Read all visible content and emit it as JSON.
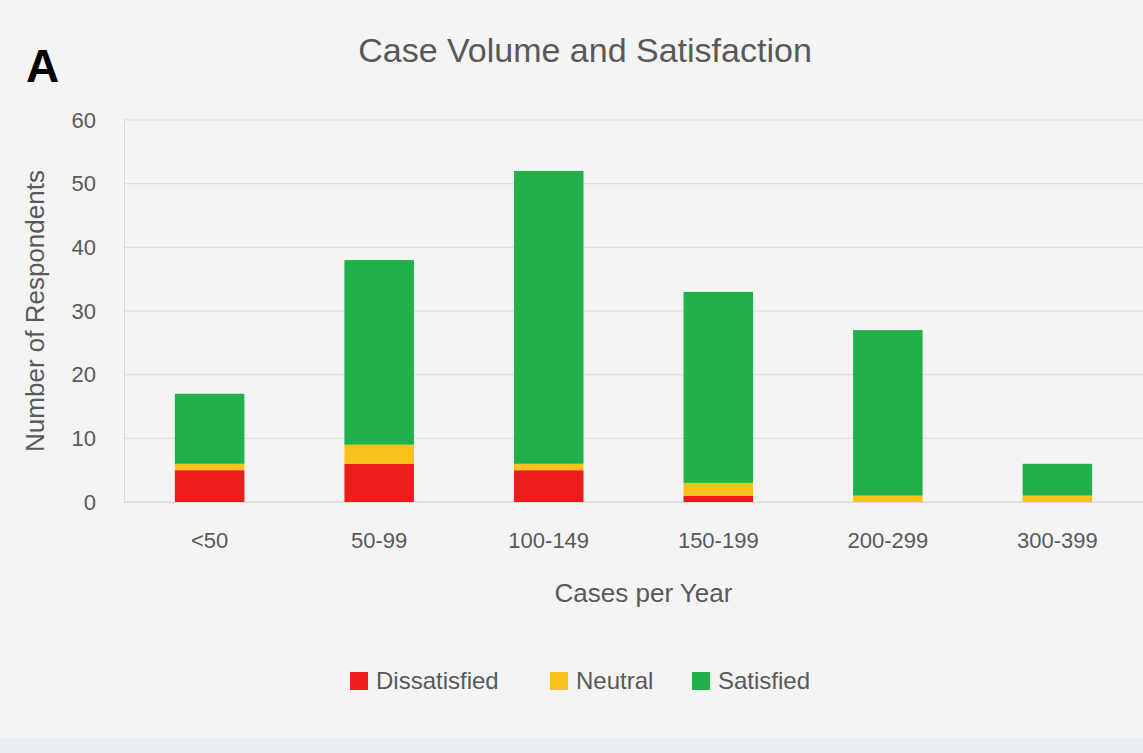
{
  "chart_data": {
    "type": "bar",
    "title": "Case Volume and Satisfaction",
    "annotations": [
      "A"
    ],
    "x_label": "Cases per Year",
    "y_label": "Number of Respondents",
    "categories": [
      "<50",
      "50-99",
      "100-149",
      "150-199",
      "200-299",
      "300-399"
    ],
    "series": [
      {
        "name": "Dissatisfied",
        "color": "#ee1d1d",
        "values": [
          5,
          6,
          5,
          1,
          0,
          0
        ]
      },
      {
        "name": "Neutral",
        "color": "#f8c11b",
        "values": [
          1,
          3,
          1,
          2,
          1,
          1
        ]
      },
      {
        "name": "Satisfied",
        "color": "#22b04b",
        "values": [
          11,
          29,
          46,
          30,
          26,
          5
        ]
      }
    ],
    "stacked": true,
    "ylim": [
      0,
      60
    ],
    "yticks": [
      0,
      10,
      20,
      30,
      40,
      50,
      60
    ],
    "grid": true,
    "legend": "bottom"
  }
}
